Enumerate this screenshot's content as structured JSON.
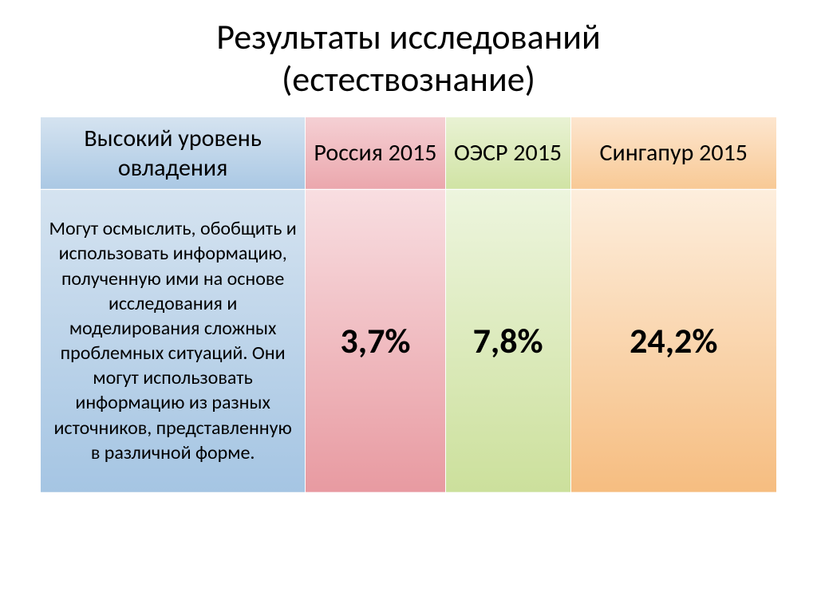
{
  "title": {
    "line1": "Результаты исследований",
    "line2": "(естествознание)"
  },
  "table": {
    "headers": {
      "description": "Высокий уровень овладения",
      "russia": "Россия 2015",
      "oecd": "ОЭСР 2015",
      "singapore": "Сингапур 2015"
    },
    "row": {
      "description": "Могут осмыслить, обобщить и использовать информацию, полученную ими на основе исследования и моделирования сложных проблемных ситуаций. Они могут использовать информацию из разных источников, представленную в различной форме.",
      "russia": "3,7%",
      "oecd": "7,8%",
      "singapore": "24,2%"
    }
  },
  "style": {
    "title_fontsize": 44,
    "header_fontsize": 30,
    "description_fontsize": 24,
    "value_fontsize": 44,
    "colors": {
      "desc_header_bg_top": "#d5e3f0",
      "desc_header_bg_bottom": "#aac8e4",
      "russia_header_bg_top": "#f5d0d4",
      "russia_header_bg_bottom": "#eba7ad",
      "oecd_header_bg_top": "#e9f2d4",
      "oecd_header_bg_bottom": "#d0e3a4",
      "singapore_header_bg_top": "#fde6cf",
      "singapore_header_bg_bottom": "#f8c995",
      "desc_body_bg_top": "#d5e3f0",
      "desc_body_bg_bottom": "#a5c5e3",
      "russia_body_bg_top": "#f8dee1",
      "russia_body_bg_bottom": "#e89aa1",
      "oecd_body_bg_top": "#edf5de",
      "oecd_body_bg_bottom": "#cce09c",
      "singapore_body_bg_top": "#fdeedd",
      "singapore_body_bg_bottom": "#f6bd80",
      "border": "#ffffff",
      "text": "#000000",
      "background": "#ffffff"
    },
    "column_widths_pct": {
      "description": 36,
      "russia": 19,
      "oecd": 17,
      "singapore": 28
    }
  }
}
